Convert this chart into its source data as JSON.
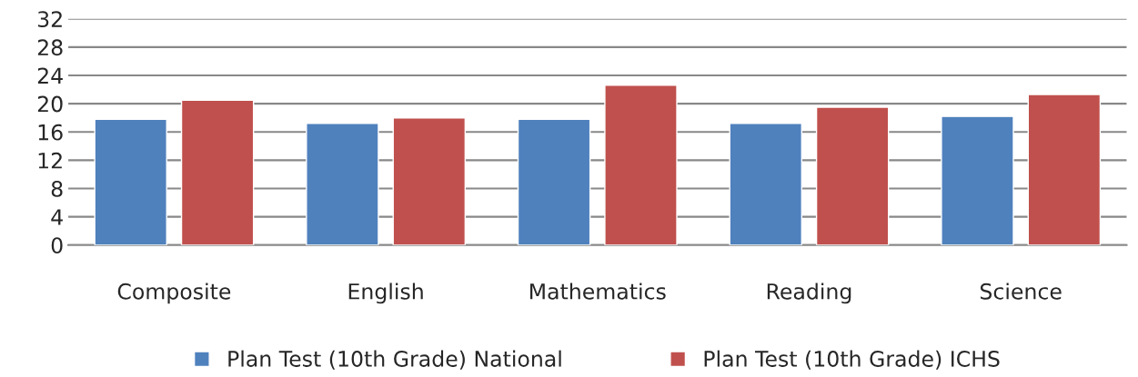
{
  "chart_data": {
    "type": "bar",
    "categories": [
      "Composite",
      "English",
      "Mathematics",
      "Reading",
      "Science"
    ],
    "series": [
      {
        "name": "Plan Test (10th Grade) National",
        "color": "#4f81bd",
        "values": [
          17.8,
          17.2,
          17.8,
          17.2,
          18.2
        ]
      },
      {
        "name": "Plan Test (10th Grade) ICHS",
        "color": "#c0504d",
        "values": [
          20.5,
          18.0,
          22.6,
          19.5,
          21.3
        ]
      }
    ],
    "ylim": [
      0,
      32
    ],
    "yticks": [
      0,
      4,
      8,
      12,
      16,
      20,
      24,
      28,
      32
    ],
    "grid": "y",
    "legend": "bottom"
  }
}
